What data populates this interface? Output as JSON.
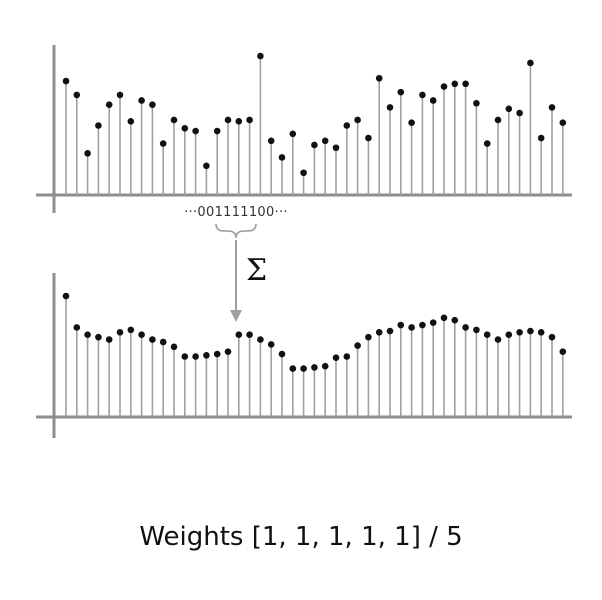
{
  "chart_data": [
    {
      "type": "stem",
      "role": "input-signal",
      "values": [
        0.82,
        0.72,
        0.3,
        0.5,
        0.65,
        0.72,
        0.53,
        0.68,
        0.65,
        0.37,
        0.54,
        0.48,
        0.46,
        0.21,
        0.46,
        0.54,
        0.53,
        0.54,
        1.0,
        0.39,
        0.27,
        0.44,
        0.16,
        0.36,
        0.39,
        0.34,
        0.5,
        0.54,
        0.41,
        0.84,
        0.63,
        0.74,
        0.52,
        0.72,
        0.68,
        0.78,
        0.8,
        0.8,
        0.66,
        0.37,
        0.54,
        0.62,
        0.59,
        0.95,
        0.41,
        0.63,
        0.52
      ]
    },
    {
      "type": "stem",
      "role": "output-signal",
      "values": [
        1.0,
        0.74,
        0.68,
        0.66,
        0.64,
        0.7,
        0.72,
        0.68,
        0.64,
        0.62,
        0.58,
        0.5,
        0.5,
        0.51,
        0.52,
        0.54,
        0.68,
        0.68,
        0.64,
        0.6,
        0.52,
        0.4,
        0.4,
        0.41,
        0.42,
        0.49,
        0.5,
        0.59,
        0.66,
        0.7,
        0.71,
        0.76,
        0.74,
        0.76,
        0.78,
        0.82,
        0.8,
        0.74,
        0.72,
        0.68,
        0.64,
        0.68,
        0.7,
        0.71,
        0.7,
        0.66,
        0.54
      ]
    }
  ],
  "kernel": {
    "label": "···001111100···"
  },
  "operator": {
    "symbol": "Σ"
  },
  "caption": {
    "text": "Weights  [1, 1, 1, 1, 1]  / 5"
  },
  "colors": {
    "stem": "#a0a0a0",
    "dot": "#111111",
    "axis": "#8e8e8e",
    "arrow": "#a0a0a0",
    "brace": "#9a9a9a"
  }
}
